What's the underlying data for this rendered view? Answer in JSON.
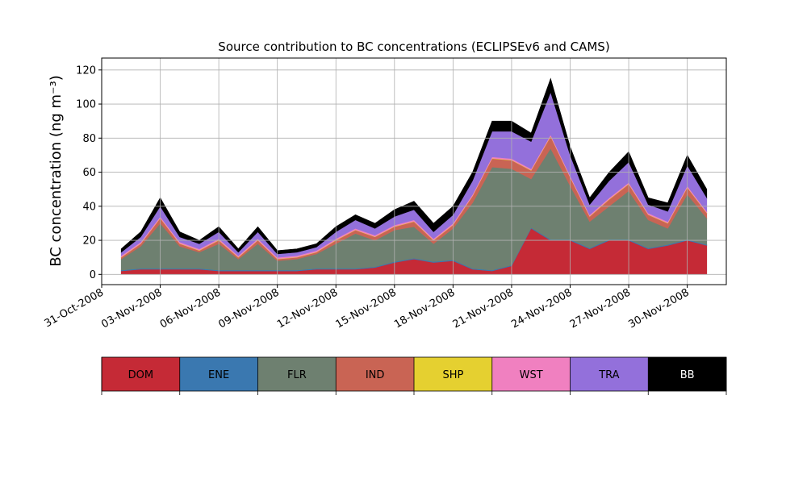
{
  "chart_data": {
    "type": "stacked-area",
    "title": "Source contribution to BC concentrations (ECLIPSEv6 and CAMS)",
    "y_label": "BC concentration (ng m⁻³)",
    "x": [
      "01-Nov-2008",
      "02-Nov-2008",
      "03-Nov-2008",
      "04-Nov-2008",
      "05-Nov-2008",
      "06-Nov-2008",
      "07-Nov-2008",
      "08-Nov-2008",
      "09-Nov-2008",
      "10-Nov-2008",
      "11-Nov-2008",
      "12-Nov-2008",
      "13-Nov-2008",
      "14-Nov-2008",
      "15-Nov-2008",
      "16-Nov-2008",
      "17-Nov-2008",
      "18-Nov-2008",
      "19-Nov-2008",
      "20-Nov-2008",
      "21-Nov-2008",
      "22-Nov-2008",
      "23-Nov-2008",
      "24-Nov-2008",
      "25-Nov-2008",
      "26-Nov-2008",
      "27-Nov-2008",
      "28-Nov-2008",
      "29-Nov-2008",
      "30-Nov-2008",
      "01-Dec-2008"
    ],
    "xlim": [
      "31-Oct-2008",
      "02-Dec-2008"
    ],
    "xticks": [
      "31-Oct-2008",
      "03-Nov-2008",
      "06-Nov-2008",
      "09-Nov-2008",
      "12-Nov-2008",
      "15-Nov-2008",
      "18-Nov-2008",
      "21-Nov-2008",
      "24-Nov-2008",
      "27-Nov-2008",
      "30-Nov-2008"
    ],
    "ylim": [
      -6,
      127
    ],
    "yticks": [
      0,
      20,
      40,
      60,
      80,
      100,
      120
    ],
    "grid": true,
    "series": [
      {
        "name": "DOM",
        "color": "#c52a36",
        "values": [
          2,
          3,
          3,
          3,
          3,
          2,
          2,
          2,
          2,
          2,
          3,
          3,
          3,
          4,
          7,
          9,
          7,
          8,
          3,
          2,
          5,
          27,
          20,
          20,
          15,
          20,
          20,
          15,
          17,
          20,
          17
        ]
      },
      {
        "name": "ENE",
        "color": "#3a78b0",
        "values": [
          0.5,
          0.5,
          0.5,
          0.5,
          0.5,
          0.5,
          0.5,
          0.5,
          0.5,
          0.5,
          0.5,
          0.5,
          0.5,
          0.5,
          0.5,
          0.5,
          0.5,
          0.5,
          0.5,
          0.5,
          0.5,
          0.5,
          0.5,
          0.5,
          0.5,
          0.5,
          0.5,
          0.5,
          0.5,
          0.5,
          0.5
        ]
      },
      {
        "name": "FLR",
        "color": "#6e8070",
        "values": [
          6.5,
          13,
          26.5,
          13,
          9.5,
          15.5,
          6.5,
          15.5,
          5.5,
          6.5,
          8.5,
          14.5,
          20.5,
          15.5,
          18.5,
          18.5,
          10.5,
          18.5,
          38.5,
          60.5,
          56.5,
          28.5,
          53.5,
          31.5,
          15.5,
          19.5,
          28.5,
          16.5,
          9.5,
          26.5,
          15.5
        ]
      },
      {
        "name": "IND",
        "color": "#c96454",
        "values": [
          1,
          1.5,
          3,
          1.5,
          1,
          2,
          1,
          2,
          1,
          1,
          1,
          2,
          2,
          2,
          2,
          3,
          2,
          2,
          4,
          5,
          5,
          5,
          7,
          5,
          3,
          4,
          4,
          3,
          3,
          4,
          3
        ]
      },
      {
        "name": "SHP",
        "color": "#e5d030",
        "values": [
          0.2,
          0.2,
          0.2,
          0.2,
          0.2,
          0.2,
          0.2,
          0.2,
          0.2,
          0.2,
          0.2,
          0.2,
          0.2,
          0.2,
          0.2,
          0.2,
          0.2,
          0.2,
          0.2,
          0.2,
          0.2,
          0.2,
          0.2,
          0.2,
          0.2,
          0.2,
          0.2,
          0.2,
          0.2,
          0.2,
          0.2
        ]
      },
      {
        "name": "WST",
        "color": "#f080c0",
        "values": [
          0.8,
          0.8,
          0.8,
          0.8,
          0.8,
          0.8,
          0.8,
          0.8,
          0.8,
          0.8,
          0.8,
          0.8,
          0.8,
          0.8,
          0.8,
          0.8,
          0.8,
          0.8,
          0.8,
          0.8,
          0.8,
          0.8,
          0.8,
          0.8,
          0.8,
          0.8,
          0.8,
          0.8,
          0.8,
          0.8,
          0.8
        ]
      },
      {
        "name": "TRA",
        "color": "#9370db",
        "values": [
          2,
          3,
          6,
          3,
          3,
          4,
          2,
          4,
          2,
          2,
          2,
          4,
          5,
          4,
          5,
          6,
          4,
          5,
          8,
          15,
          16,
          16,
          25,
          12,
          6,
          10,
          12,
          5,
          6,
          12,
          8
        ]
      },
      {
        "name": "BB",
        "color": "#000000",
        "values": [
          2,
          3,
          5,
          3,
          2,
          3,
          2,
          3,
          2,
          2,
          2,
          3,
          3,
          3,
          4,
          5,
          5,
          5,
          5,
          6,
          6,
          5,
          8,
          5,
          4,
          5,
          6,
          4,
          5,
          6,
          5
        ]
      }
    ]
  }
}
